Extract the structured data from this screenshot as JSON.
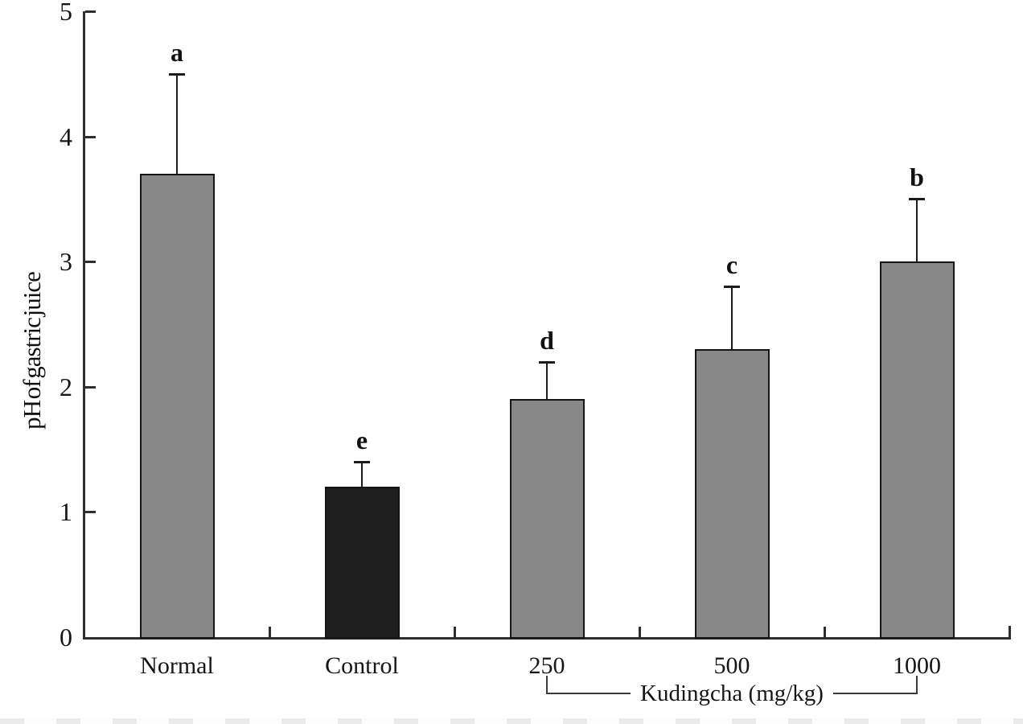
{
  "chart_data": {
    "type": "bar",
    "title": "",
    "ylabel": "pH of gastric juice",
    "xlabel": "",
    "ylim": [
      0,
      5
    ],
    "yticks": [
      0,
      1,
      2,
      3,
      4,
      5
    ],
    "categories": [
      "Normal",
      "Control",
      "250",
      "500",
      "1000"
    ],
    "values": [
      3.7,
      1.2,
      1.9,
      2.3,
      3.0
    ],
    "errors_upper": [
      0.8,
      0.2,
      0.3,
      0.5,
      0.5
    ],
    "sig_letters": [
      "a",
      "e",
      "d",
      "c",
      "b"
    ],
    "bar_colors": [
      "#878787",
      "#1f1f1f",
      "#878787",
      "#878787",
      "#878787"
    ],
    "bar_border_color": "#151515",
    "axis_color": "#2e2e2e",
    "grid": false,
    "legend_position": "none",
    "group_bracket": {
      "label": "Kudingcha (mg/kg)",
      "from_category": "250",
      "to_category": "1000"
    }
  }
}
